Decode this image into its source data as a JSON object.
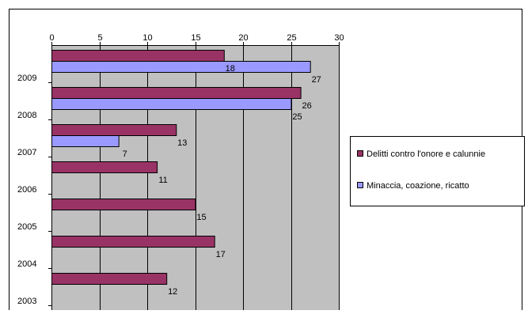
{
  "chart_data": {
    "type": "bar",
    "orientation": "horizontal",
    "title": "",
    "xlabel": "",
    "ylabel": "",
    "categories": [
      "2009",
      "2008",
      "2007",
      "2006",
      "2005",
      "2004",
      "2003"
    ],
    "series": [
      {
        "name": "Delitti contro l'onore e calunnie",
        "color": "#993366",
        "values": [
          18,
          26,
          13,
          11,
          15,
          17,
          12
        ]
      },
      {
        "name": "Minaccia, coazione, ricatto",
        "color": "#9999ff",
        "values": [
          27,
          25,
          7,
          null,
          null,
          null,
          null
        ]
      }
    ],
    "xlim": [
      0,
      30
    ],
    "x_ticks": [
      "0",
      "5",
      "10",
      "15",
      "20",
      "25",
      "30"
    ],
    "x_axis_position": "top",
    "grid": true,
    "plot_background": "#c0c0c0",
    "legend_position": "right"
  }
}
